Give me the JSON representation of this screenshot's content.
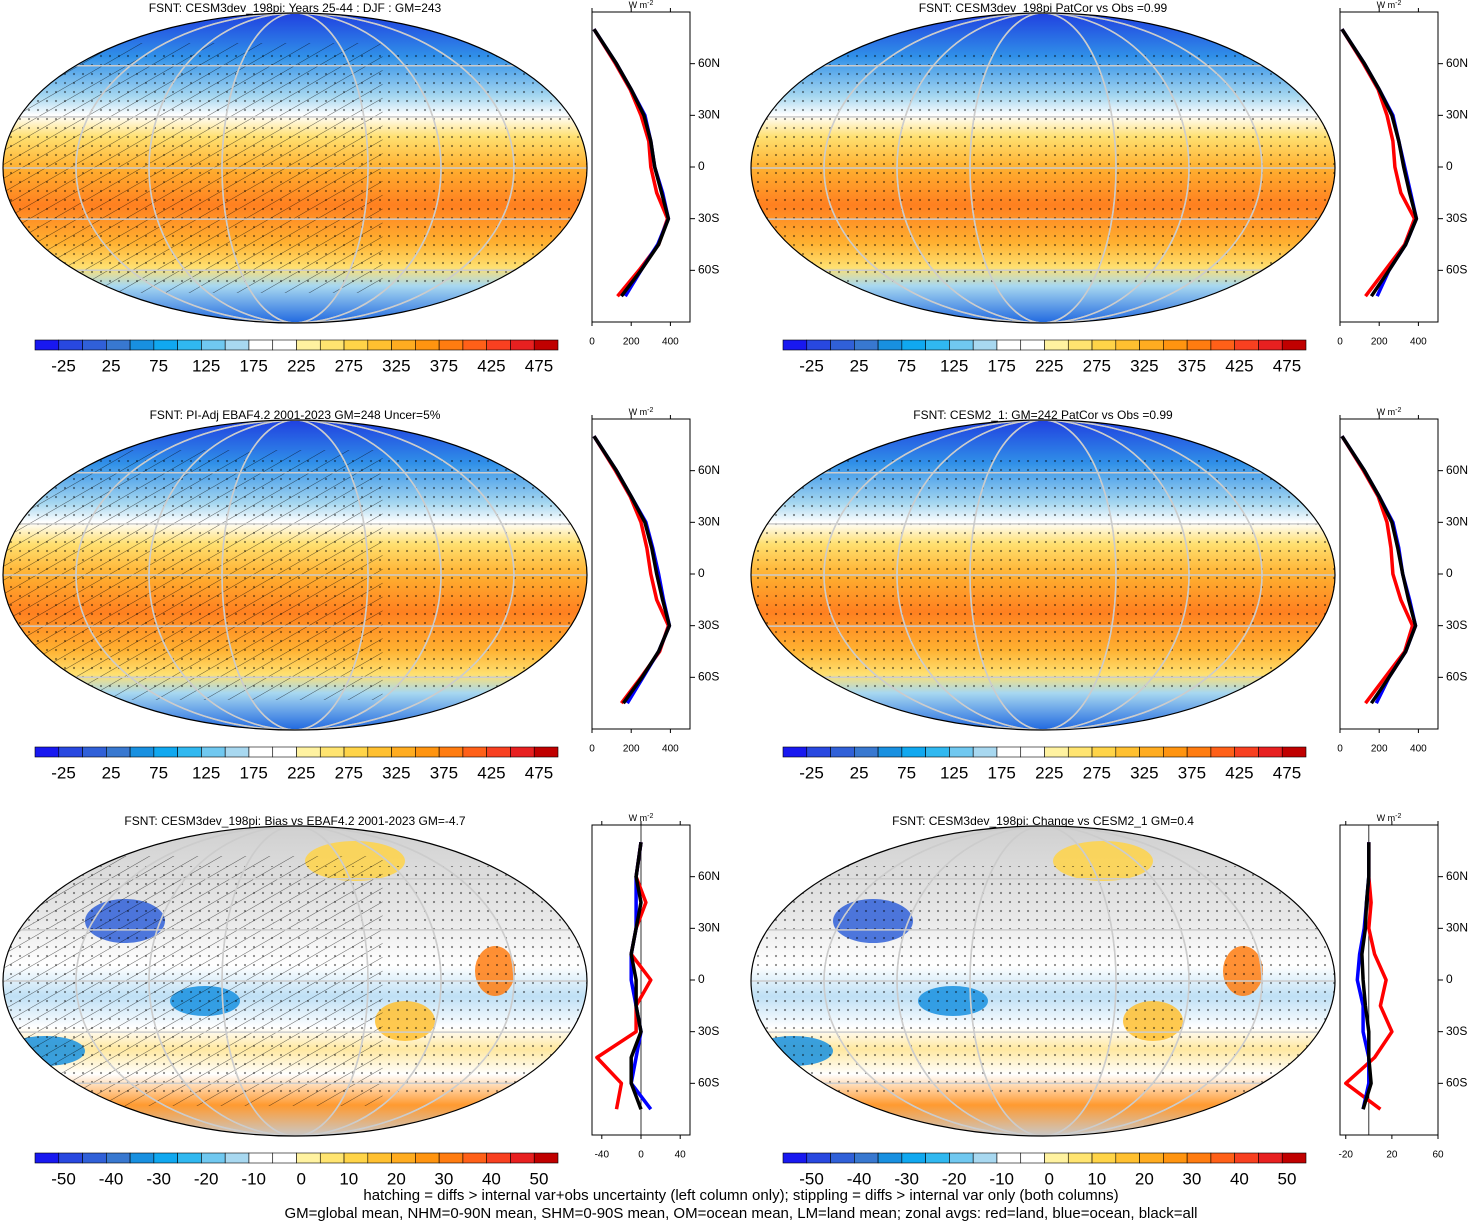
{
  "figure": {
    "footer": [
      "hatching = diffs > internal var+obs uncertainty (left column only); stippling = diffs > internal var only (both columns)",
      "GM=global mean, NHM=0-90N mean, SHM=0-90S mean, OM=ocean mean, LM=land mean; zonal avgs: red=land, blue=ocean, black=all"
    ],
    "unit": {
      "base": "W m",
      "exp": "-2"
    },
    "lat": [
      80,
      60,
      45,
      30,
      15,
      0,
      -15,
      -30,
      -45,
      -60,
      -75
    ],
    "ylim": [
      -90,
      90
    ],
    "yticks": [
      {
        "value": 60,
        "label": "60N"
      },
      {
        "value": 30,
        "label": "30N"
      },
      0,
      {
        "value": -30,
        "label": "30S"
      },
      {
        "value": -60,
        "label": "60S"
      }
    ],
    "clim_colors": [
      "#1818f0",
      "#2848e0",
      "#3060d8",
      "#3878d0",
      "#1890e0",
      "#10a8f0",
      "#30b8f0",
      "#70c8f0",
      "#a8d8f0",
      "#ffffff",
      "#ffffff",
      "#fff2a0",
      "#ffe470",
      "#ffd448",
      "#ffc030",
      "#ffac20",
      "#ff9410",
      "#ff7c10",
      "#ff6018",
      "#f84020",
      "#e82020",
      "#c00000"
    ],
    "bias_colors": [
      "#1818f0",
      "#2848e0",
      "#3060d8",
      "#3878d0",
      "#1890e0",
      "#10a8f0",
      "#30b8f0",
      "#70c8f0",
      "#a8d8f0",
      "#ffffff",
      "#ffffff",
      "#fff2a0",
      "#ffe470",
      "#ffd448",
      "#ffc030",
      "#ffac20",
      "#ff9410",
      "#ff7c10",
      "#ff6018",
      "#f84020",
      "#e82020",
      "#c00000"
    ],
    "panels": [
      {
        "type": "clim",
        "title": "FSNT: CESM3dev_198pi: Years 25-44 : DJF : GM=243",
        "colorbar_labels": [
          -25,
          25,
          75,
          125,
          175,
          225,
          275,
          325,
          375,
          425,
          475
        ],
        "xlim": [
          0,
          500
        ],
        "xticks": [
          0,
          200,
          400
        ],
        "series": [
          {
            "name": "land",
            "color": "#ff0000",
            "values": [
              10,
              120,
              195,
              250,
              290,
              300,
              330,
              385,
              340,
              240,
              130
            ]
          },
          {
            "name": "ocean",
            "color": "#0000ff",
            "values": [
              10,
              125,
              200,
              270,
              300,
              320,
              360,
              390,
              335,
              250,
              170
            ]
          },
          {
            "name": "all",
            "color": "#000000",
            "values": [
              10,
              125,
              200,
              265,
              300,
              320,
              355,
              390,
              340,
              250,
              150
            ]
          }
        ]
      },
      {
        "type": "clim",
        "title": "FSNT: CESM3dev_198pi PatCor vs Obs =0.99",
        "colorbar_labels": [
          -25,
          25,
          75,
          125,
          175,
          225,
          275,
          325,
          375,
          425,
          475
        ],
        "xlim": [
          0,
          500
        ],
        "xticks": [
          0,
          200,
          400
        ],
        "series": [
          {
            "name": "land",
            "color": "#ff0000",
            "values": [
              10,
              120,
              195,
              240,
              270,
              280,
              310,
              380,
              330,
              230,
              130
            ]
          },
          {
            "name": "ocean",
            "color": "#0000ff",
            "values": [
              10,
              125,
              200,
              270,
              300,
              330,
              360,
              390,
              335,
              250,
              190
            ]
          },
          {
            "name": "all",
            "color": "#000000",
            "values": [
              10,
              125,
              200,
              265,
              300,
              325,
              355,
              390,
              335,
              250,
              160
            ]
          }
        ]
      },
      {
        "type": "clim",
        "title": "FSNT: PI-Adj EBAF4.2 2001-2023 GM=248 Uncer=5%",
        "colorbar_labels": [
          -25,
          25,
          75,
          125,
          175,
          225,
          275,
          325,
          375,
          425,
          475
        ],
        "xlim": [
          0,
          500
        ],
        "xticks": [
          0,
          200,
          400
        ],
        "series": [
          {
            "name": "land",
            "color": "#ff0000",
            "values": [
              10,
              120,
              195,
              250,
              280,
              300,
              330,
              390,
              345,
              250,
              150
            ]
          },
          {
            "name": "ocean",
            "color": "#0000ff",
            "values": [
              10,
              125,
              200,
              275,
              310,
              340,
              365,
              395,
              340,
              260,
              180
            ]
          },
          {
            "name": "all",
            "color": "#000000",
            "values": [
              10,
              125,
              200,
              270,
              305,
              330,
              360,
              395,
              340,
              255,
              160
            ]
          }
        ]
      },
      {
        "type": "clim",
        "title": "FSNT: CESM2_1: GM=242 PatCor vs Obs =0.99",
        "colorbar_labels": [
          -25,
          25,
          75,
          125,
          175,
          225,
          275,
          325,
          375,
          425,
          475
        ],
        "xlim": [
          0,
          500
        ],
        "xticks": [
          0,
          200,
          400
        ],
        "series": [
          {
            "name": "land",
            "color": "#ff0000",
            "values": [
              10,
              120,
              195,
              240,
              260,
              270,
              310,
              370,
              330,
              230,
              130
            ]
          },
          {
            "name": "ocean",
            "color": "#0000ff",
            "values": [
              10,
              125,
              200,
              270,
              300,
              320,
              355,
              385,
              335,
              250,
              185
            ]
          },
          {
            "name": "all",
            "color": "#000000",
            "values": [
              10,
              125,
              200,
              265,
              295,
              320,
              350,
              385,
              335,
              250,
              160
            ]
          }
        ]
      },
      {
        "type": "bias",
        "title": "FSNT: CESM3dev_198pi: Bias vs EBAF4.2 2001-2023 GM=-4.7",
        "colorbar_labels": [
          -50,
          -40,
          -30,
          -20,
          -10,
          0,
          10,
          20,
          30,
          40,
          50
        ],
        "xlim": [
          -50,
          50
        ],
        "xticks": [
          -40,
          0,
          40
        ],
        "series": [
          {
            "name": "land",
            "color": "#ff0000",
            "values": [
              0,
              -5,
              5,
              -5,
              -10,
              10,
              -5,
              -5,
              -45,
              -20,
              -25
            ]
          },
          {
            "name": "ocean",
            "color": "#0000ff",
            "values": [
              0,
              -5,
              -5,
              -5,
              -10,
              -10,
              -5,
              0,
              -5,
              -10,
              10
            ]
          },
          {
            "name": "all",
            "color": "#000000",
            "values": [
              0,
              -5,
              0,
              -5,
              -10,
              -5,
              -5,
              0,
              -10,
              -10,
              0
            ]
          }
        ]
      },
      {
        "type": "bias",
        "title": "FSNT: CESM3dev_198pi: Change vs CESM2_1 GM=0.4",
        "colorbar_labels": [
          -50,
          -40,
          -30,
          -20,
          -10,
          0,
          10,
          20,
          30,
          40,
          50
        ],
        "xlim": [
          -25,
          60
        ],
        "xticks": [
          -20,
          20,
          60
        ],
        "series": [
          {
            "name": "land",
            "color": "#ff0000",
            "values": [
              0,
              0,
              2,
              0,
              5,
              15,
              10,
              20,
              5,
              -20,
              10
            ]
          },
          {
            "name": "ocean",
            "color": "#0000ff",
            "values": [
              0,
              0,
              -2,
              -4,
              -8,
              -10,
              -5,
              -5,
              0,
              0,
              -5
            ]
          },
          {
            "name": "all",
            "color": "#000000",
            "values": [
              0,
              0,
              -2,
              -3,
              -6,
              -5,
              -3,
              0,
              0,
              2,
              -5
            ]
          }
        ]
      }
    ]
  }
}
